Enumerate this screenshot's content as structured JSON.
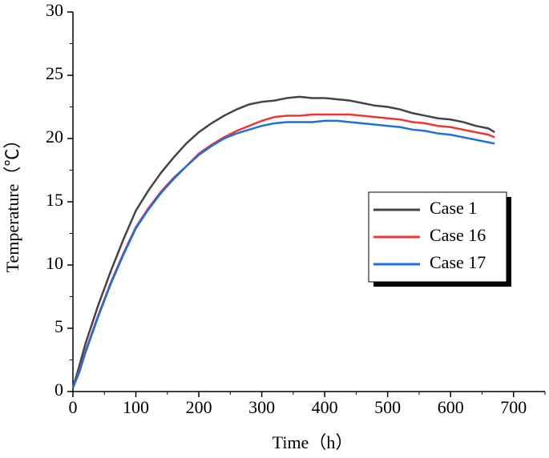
{
  "chart_data": {
    "type": "line",
    "x_label": "Time（h）",
    "y_label": "Temperature（℃）",
    "x": [
      0,
      10,
      20,
      40,
      60,
      80,
      100,
      120,
      140,
      160,
      180,
      200,
      220,
      240,
      260,
      280,
      300,
      320,
      340,
      360,
      380,
      400,
      420,
      440,
      460,
      480,
      500,
      520,
      540,
      560,
      580,
      600,
      620,
      640,
      660,
      670
    ],
    "series": [
      {
        "name": "Case 1",
        "color": "#444444",
        "values": [
          0.3,
          2.0,
          3.8,
          6.8,
          9.5,
          12.0,
          14.3,
          15.9,
          17.3,
          18.5,
          19.6,
          20.5,
          21.2,
          21.8,
          22.3,
          22.7,
          22.9,
          23.0,
          23.2,
          23.3,
          23.2,
          23.2,
          23.1,
          23.0,
          22.8,
          22.6,
          22.5,
          22.3,
          22.0,
          21.8,
          21.6,
          21.5,
          21.3,
          21.0,
          20.8,
          20.5
        ]
      },
      {
        "name": "Case 16",
        "color": "#ee3636",
        "values": [
          0.3,
          1.6,
          3.2,
          6.0,
          8.6,
          10.9,
          13.0,
          14.5,
          15.8,
          16.9,
          17.8,
          18.8,
          19.5,
          20.1,
          20.6,
          21.0,
          21.4,
          21.7,
          21.8,
          21.8,
          21.9,
          21.9,
          21.9,
          21.9,
          21.8,
          21.7,
          21.6,
          21.5,
          21.3,
          21.2,
          21.0,
          20.9,
          20.7,
          20.5,
          20.3,
          20.1
        ]
      },
      {
        "name": "Case 17",
        "color": "#1f6fdb",
        "values": [
          0.3,
          1.5,
          3.1,
          5.9,
          8.5,
          10.8,
          12.9,
          14.4,
          15.7,
          16.8,
          17.8,
          18.7,
          19.4,
          20.0,
          20.4,
          20.7,
          21.0,
          21.2,
          21.3,
          21.3,
          21.3,
          21.4,
          21.4,
          21.3,
          21.2,
          21.1,
          21.0,
          20.9,
          20.7,
          20.6,
          20.4,
          20.3,
          20.1,
          19.9,
          19.7,
          19.6
        ]
      }
    ],
    "xlim": [
      0,
      750
    ],
    "xticks": [
      0,
      100,
      200,
      300,
      400,
      500,
      600,
      700
    ],
    "ylim": [
      0,
      30
    ],
    "yticks": [
      0,
      5,
      10,
      15,
      20,
      25,
      30
    ],
    "grid": false,
    "legend_position": "right"
  }
}
